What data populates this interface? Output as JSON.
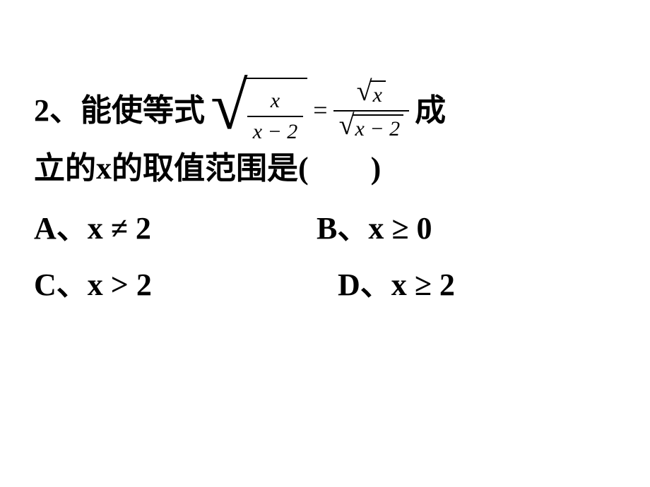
{
  "question": {
    "number_prefix": "2、",
    "text_lead": "能使等式",
    "text_tail": "成",
    "line2": "立的x的取值范围是(  )",
    "formula": {
      "left_frac": {
        "num": "x",
        "den": "x − 2"
      },
      "eq": "=",
      "right_frac": {
        "num_radicand": "x",
        "den_radicand": "x − 2"
      }
    }
  },
  "choices": {
    "A": {
      "label": "A、",
      "expr": "x ≠ 2"
    },
    "B": {
      "label": "B、",
      "expr": "x ≥ 0"
    },
    "C": {
      "label": "C、",
      "expr": "x > 2"
    },
    "D": {
      "label": "D、",
      "expr": "x ≥ 2"
    }
  },
  "style": {
    "text_color": "#000000",
    "background_color": "#ffffff",
    "font_size_pt": 33,
    "font_weight": "bold",
    "math_font": "Times New Roman"
  }
}
